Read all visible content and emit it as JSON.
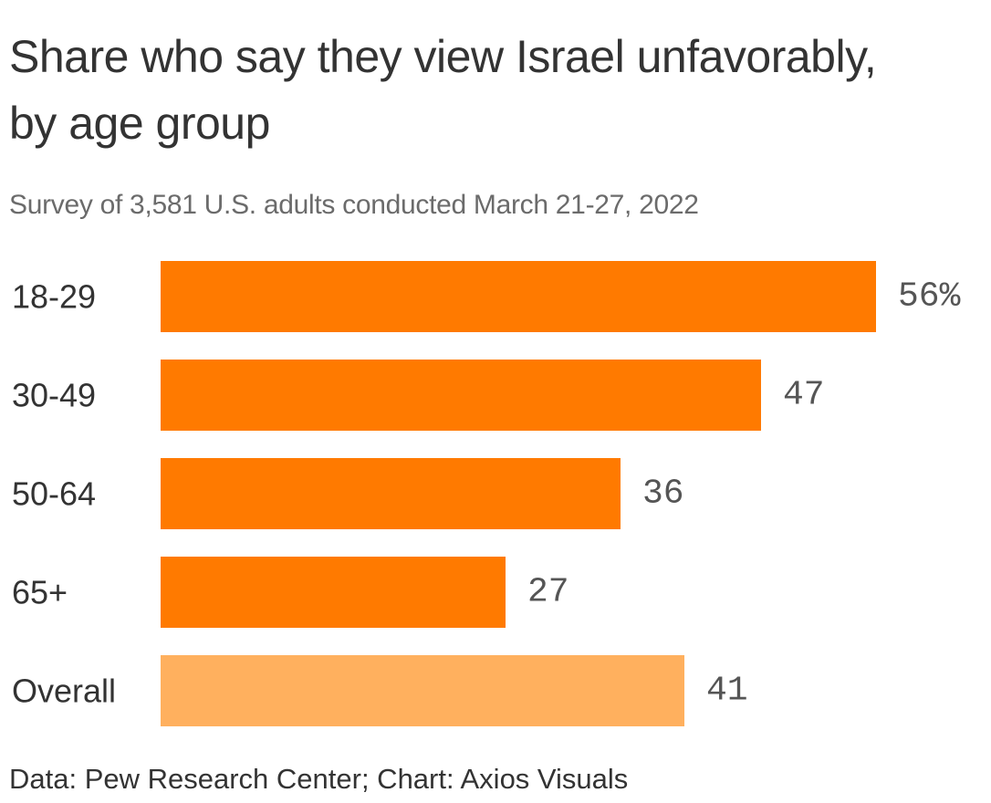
{
  "chart_data": {
    "type": "bar",
    "orientation": "horizontal",
    "title": "Share who say they view Israel unfavorably, by age group",
    "subtitle": "Survey of 3,581 U.S. adults conducted March 21-27, 2022",
    "categories": [
      "18-29",
      "30-49",
      "50-64",
      "65+",
      "Overall"
    ],
    "values": [
      56,
      47,
      36,
      27,
      41
    ],
    "value_labels": [
      "56%",
      "47",
      "36",
      "27",
      "41"
    ],
    "unit": "%",
    "colors": [
      "#FF7A00",
      "#FF7A00",
      "#FF7A00",
      "#FF7A00",
      "#FFB05E"
    ],
    "xlim": [
      0,
      56
    ],
    "grid": false,
    "legend": "none"
  },
  "source": "Data: Pew Research Center; Chart: Axios Visuals"
}
